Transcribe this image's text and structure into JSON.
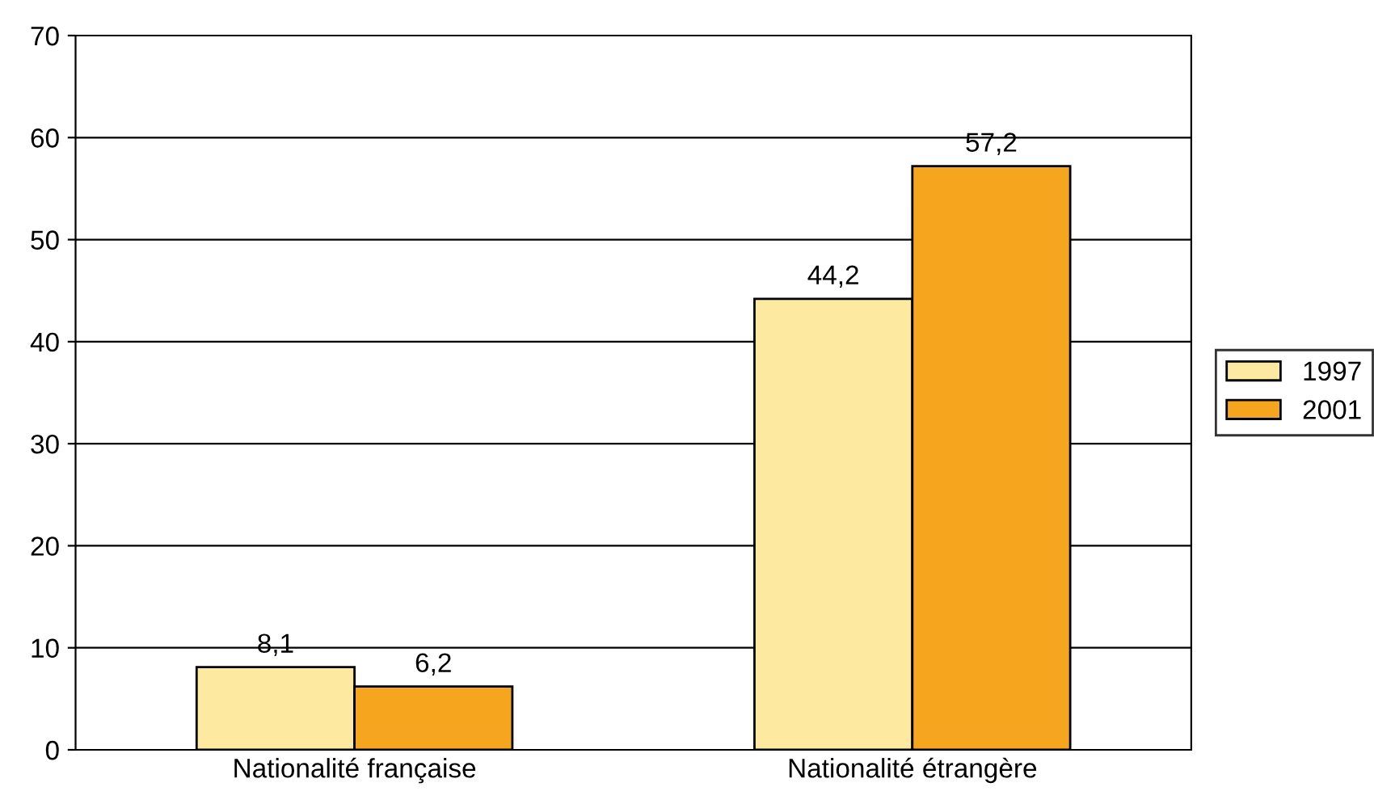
{
  "chart_data": {
    "type": "bar",
    "categories": [
      "Nationalité française",
      "Nationalité étrangère"
    ],
    "series": [
      {
        "name": "1997",
        "color": "#fde9a0",
        "values": [
          8.1,
          44.2
        ],
        "value_labels": [
          "8,1",
          "44,2"
        ]
      },
      {
        "name": "2001",
        "color": "#f6a51e",
        "values": [
          6.2,
          57.2
        ],
        "value_labels": [
          "6,2",
          "57,2"
        ]
      }
    ],
    "ylim": [
      0,
      70
    ],
    "yticks": [
      0,
      10,
      20,
      30,
      40,
      50,
      60,
      70
    ],
    "grid": "y",
    "legend": "right"
  }
}
